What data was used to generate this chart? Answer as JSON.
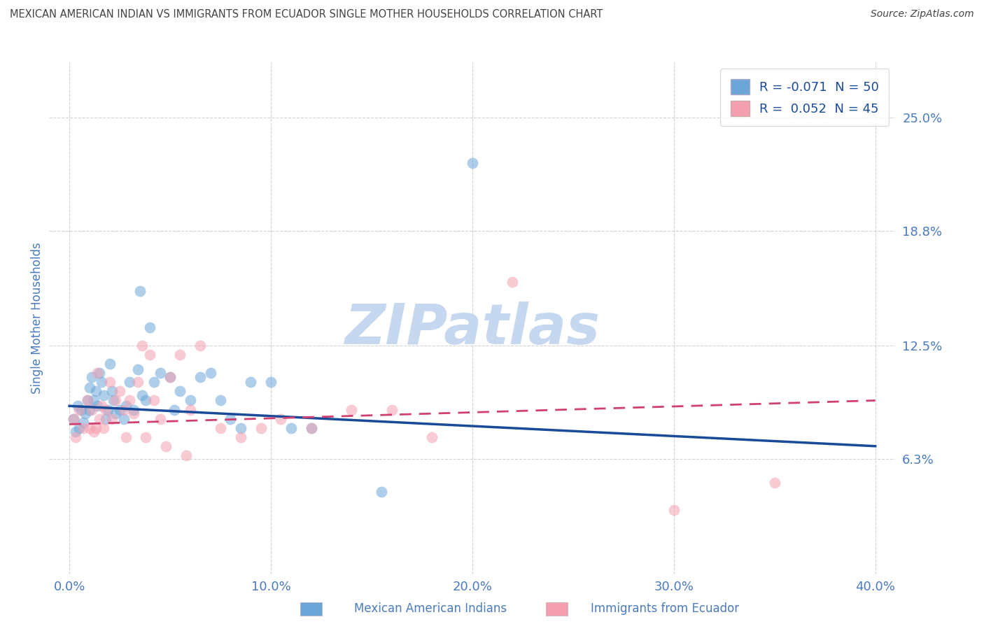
{
  "title": "MEXICAN AMERICAN INDIAN VS IMMIGRANTS FROM ECUADOR SINGLE MOTHER HOUSEHOLDS CORRELATION CHART",
  "source": "Source: ZipAtlas.com",
  "ylabel": "Single Mother Households",
  "xlabel": "",
  "xlim": [
    -1.0,
    41.0
  ],
  "ylim": [
    0.0,
    28.0
  ],
  "yticks": [
    6.3,
    12.5,
    18.8,
    25.0
  ],
  "xticks": [
    0.0,
    10.0,
    20.0,
    30.0,
    40.0
  ],
  "ytick_labels": [
    "6.3%",
    "12.5%",
    "18.8%",
    "25.0%"
  ],
  "xtick_labels": [
    "0.0%",
    "10.0%",
    "20.0%",
    "30.0%",
    "40.0%"
  ],
  "blue_label": "Mexican American Indians",
  "pink_label": "Immigrants from Ecuador",
  "blue_R": -0.071,
  "blue_N": 50,
  "pink_R": 0.052,
  "pink_N": 45,
  "blue_color": "#6ca6d8",
  "pink_color": "#f4a0b0",
  "blue_line_color": "#1a4a9a",
  "pink_line_color": "#d04070",
  "watermark": "ZIPatlas",
  "watermark_color": "#c5d8ef",
  "background_color": "#ffffff",
  "grid_color": "#c8c8c8",
  "title_color": "#444444",
  "tick_label_color": "#4a7bbf",
  "blue_trend_x": [
    0.0,
    40.0
  ],
  "blue_trend_y": [
    9.2,
    7.0
  ],
  "pink_trend_x": [
    0.0,
    40.0
  ],
  "pink_trend_y": [
    8.2,
    9.5
  ],
  "blue_scatter_x": [
    0.2,
    0.3,
    0.4,
    0.5,
    0.6,
    0.7,
    0.8,
    0.9,
    1.0,
    1.0,
    1.1,
    1.2,
    1.3,
    1.4,
    1.5,
    1.6,
    1.7,
    1.8,
    1.9,
    2.0,
    2.1,
    2.2,
    2.3,
    2.5,
    2.7,
    2.8,
    3.0,
    3.2,
    3.4,
    3.6,
    3.8,
    4.0,
    4.2,
    4.5,
    5.0,
    5.2,
    5.5,
    6.0,
    6.5,
    7.0,
    7.5,
    8.0,
    8.5,
    9.0,
    10.0,
    11.0,
    12.0,
    15.5,
    20.0,
    3.5
  ],
  "blue_scatter_y": [
    8.5,
    7.8,
    9.2,
    8.0,
    9.0,
    8.3,
    8.8,
    9.5,
    9.0,
    10.2,
    10.8,
    9.5,
    10.0,
    9.2,
    11.0,
    10.5,
    9.8,
    8.5,
    9.0,
    11.5,
    10.0,
    9.5,
    8.8,
    9.0,
    8.5,
    9.2,
    10.5,
    9.0,
    11.2,
    9.8,
    9.5,
    13.5,
    10.5,
    11.0,
    10.8,
    9.0,
    10.0,
    9.5,
    10.8,
    11.0,
    9.5,
    8.5,
    8.0,
    10.5,
    10.5,
    8.0,
    8.0,
    4.5,
    22.5,
    15.5
  ],
  "pink_scatter_x": [
    0.2,
    0.3,
    0.5,
    0.7,
    0.9,
    1.0,
    1.1,
    1.2,
    1.4,
    1.5,
    1.6,
    1.7,
    1.8,
    2.0,
    2.1,
    2.3,
    2.5,
    2.7,
    3.0,
    3.2,
    3.4,
    3.6,
    4.0,
    4.2,
    4.5,
    5.0,
    5.5,
    6.0,
    6.5,
    7.5,
    8.5,
    9.5,
    10.5,
    12.0,
    14.0,
    16.0,
    18.0,
    22.0,
    30.0,
    35.0,
    2.8,
    3.8,
    4.8,
    5.8,
    1.3
  ],
  "pink_scatter_y": [
    8.5,
    7.5,
    9.0,
    8.0,
    9.5,
    8.0,
    9.0,
    7.8,
    11.0,
    8.5,
    9.2,
    8.0,
    9.0,
    10.5,
    8.5,
    9.5,
    10.0,
    9.0,
    9.5,
    8.8,
    10.5,
    12.5,
    12.0,
    9.5,
    8.5,
    10.8,
    12.0,
    9.0,
    12.5,
    8.0,
    7.5,
    8.0,
    8.5,
    8.0,
    9.0,
    9.0,
    7.5,
    16.0,
    3.5,
    5.0,
    7.5,
    7.5,
    7.0,
    6.5,
    8.0
  ]
}
